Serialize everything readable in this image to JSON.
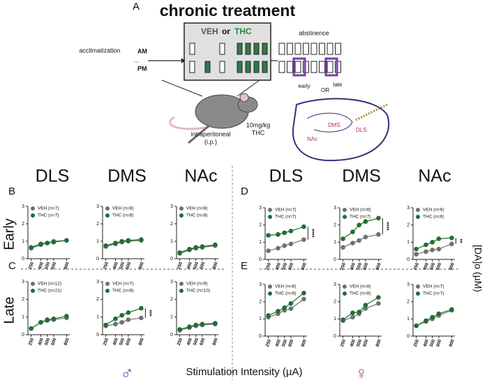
{
  "figure": {
    "panel_labels": [
      "A",
      "B",
      "C",
      "D",
      "E"
    ],
    "regions": [
      "DLS",
      "DMS",
      "NAc"
    ],
    "rows": [
      "Early",
      "Late"
    ],
    "y_label": "[DA]o (µM)",
    "x_label": "Stimulation Intensity (µA)",
    "sexes": [
      "♂",
      "♀"
    ]
  },
  "schematic": {
    "title": "chronic treatment",
    "veh": "VEH",
    "or": "or",
    "thc": "THC",
    "acclimatization": "acclimatization",
    "am": "AM",
    "pm": "PM",
    "ellipsis": "...",
    "abstinence": "abstinence",
    "early": "early",
    "or2": "OR",
    "late": "late",
    "brain_labels": [
      "DMS",
      "DLS",
      "NAc"
    ],
    "route": "intraperitoneal",
    "route_abbr": "(i.p.)",
    "dose": "10mg/kg",
    "drug": "THC"
  },
  "chart_data": [
    {
      "type": "line",
      "x": [
        250,
        400,
        500,
        600,
        800
      ],
      "xlim": [
        200,
        850
      ],
      "xticks": [
        250,
        400,
        500,
        600,
        800
      ],
      "ylim": [
        0,
        3
      ],
      "yticks": [
        0,
        1,
        2,
        3
      ],
      "series": [
        {
          "name": "VEH (n=7)",
          "color": "#707070",
          "values": [
            0.6,
            0.8,
            0.9,
            1.0,
            1.05
          ]
        },
        {
          "name": "THC (n=7)",
          "color": "#1f6e30",
          "values": [
            0.65,
            0.85,
            0.9,
            0.95,
            1.05
          ]
        }
      ]
    },
    {
      "type": "line",
      "x": [
        250,
        400,
        500,
        600,
        800
      ],
      "xlim": [
        200,
        850
      ],
      "xticks": [
        250,
        400,
        500,
        600,
        800
      ],
      "ylim": [
        0,
        3
      ],
      "yticks": [
        0,
        1,
        2,
        3
      ],
      "series": [
        {
          "name": "VEH (n=8)",
          "color": "#707070",
          "values": [
            0.7,
            0.85,
            0.95,
            1.0,
            1.05
          ]
        },
        {
          "name": "THC (n=8)",
          "color": "#1f6e30",
          "values": [
            0.75,
            0.9,
            1.0,
            1.05,
            1.1
          ]
        }
      ]
    },
    {
      "type": "line",
      "x": [
        250,
        400,
        500,
        600,
        800
      ],
      "xlim": [
        200,
        850
      ],
      "xticks": [
        250,
        400,
        500,
        600,
        800
      ],
      "ylim": [
        0,
        3
      ],
      "yticks": [
        0,
        1,
        2,
        3
      ],
      "series": [
        {
          "name": "VEH (n=8)",
          "color": "#707070",
          "values": [
            0.3,
            0.5,
            0.6,
            0.65,
            0.75
          ]
        },
        {
          "name": "THC (n=8)",
          "color": "#1f6e30",
          "values": [
            0.35,
            0.55,
            0.65,
            0.7,
            0.8
          ]
        }
      ]
    },
    {
      "type": "line",
      "x": [
        250,
        400,
        500,
        600,
        800
      ],
      "xlim": [
        200,
        850
      ],
      "xticks": [
        250,
        400,
        500,
        600,
        800
      ],
      "ylim": [
        0,
        3
      ],
      "yticks": [
        0,
        1,
        2,
        3
      ],
      "series": [
        {
          "name": "VEH (n=7)",
          "color": "#707070",
          "values": [
            0.5,
            0.65,
            0.8,
            0.9,
            1.15
          ]
        },
        {
          "name": "THC (n=7)",
          "color": "#1f6e30",
          "values": [
            1.4,
            1.45,
            1.55,
            1.65,
            1.9
          ]
        }
      ],
      "annotation": "****"
    },
    {
      "type": "line",
      "x": [
        250,
        400,
        500,
        600,
        800
      ],
      "xlim": [
        200,
        850
      ],
      "xticks": [
        250,
        400,
        500,
        600,
        800
      ],
      "ylim": [
        0,
        3
      ],
      "yticks": [
        0,
        1,
        2,
        3
      ],
      "series": [
        {
          "name": "VEH (n=8)",
          "color": "#707070",
          "values": [
            0.7,
            0.95,
            1.1,
            1.3,
            1.45
          ]
        },
        {
          "name": "THC (n=7)",
          "color": "#1f6e30",
          "values": [
            1.2,
            1.6,
            2.0,
            2.2,
            2.4
          ]
        }
      ],
      "annotation": "****"
    },
    {
      "type": "line",
      "x": [
        250,
        400,
        500,
        600,
        800
      ],
      "xlim": [
        200,
        850
      ],
      "xticks": [
        250,
        400,
        500,
        600,
        800
      ],
      "ylim": [
        0,
        3
      ],
      "yticks": [
        0,
        1,
        2,
        3
      ],
      "series": [
        {
          "name": "VEH (n=6)",
          "color": "#707070",
          "values": [
            0.3,
            0.45,
            0.55,
            0.6,
            0.9
          ]
        },
        {
          "name": "THC (n=6)",
          "color": "#1f6e30",
          "values": [
            0.6,
            0.85,
            1.0,
            1.2,
            1.25
          ]
        }
      ],
      "annotation": "**"
    },
    {
      "type": "line",
      "x": [
        250,
        400,
        500,
        600,
        800
      ],
      "xlim": [
        200,
        850
      ],
      "xticks": [
        250,
        400,
        500,
        600,
        800
      ],
      "ylim": [
        0,
        3
      ],
      "yticks": [
        0,
        1,
        2,
        3
      ],
      "series": [
        {
          "name": "VEH (n=12)",
          "color": "#707070",
          "values": [
            0.35,
            0.7,
            0.8,
            0.85,
            0.95
          ]
        },
        {
          "name": "THC (n=21)",
          "color": "#1f6e30",
          "values": [
            0.35,
            0.7,
            0.85,
            0.9,
            1.05
          ]
        }
      ]
    },
    {
      "type": "line",
      "x": [
        250,
        400,
        500,
        600,
        800
      ],
      "xlim": [
        200,
        850
      ],
      "xticks": [
        250,
        400,
        500,
        600,
        800
      ],
      "ylim": [
        0,
        3
      ],
      "yticks": [
        0,
        1,
        2,
        3
      ],
      "series": [
        {
          "name": "VEH (n=7)",
          "color": "#707070",
          "values": [
            0.5,
            0.6,
            0.7,
            0.85,
            0.95
          ]
        },
        {
          "name": "THC (n=8)",
          "color": "#1f6e30",
          "values": [
            0.55,
            0.9,
            1.1,
            1.25,
            1.5
          ]
        }
      ],
      "annotation": "***"
    },
    {
      "type": "line",
      "x": [
        250,
        400,
        500,
        600,
        800
      ],
      "xlim": [
        200,
        850
      ],
      "xticks": [
        250,
        400,
        500,
        600,
        800
      ],
      "ylim": [
        0,
        3
      ],
      "yticks": [
        0,
        1,
        2,
        3
      ],
      "series": [
        {
          "name": "VEH (n=9)",
          "color": "#707070",
          "values": [
            0.25,
            0.4,
            0.5,
            0.55,
            0.6
          ]
        },
        {
          "name": "THC (n=10)",
          "color": "#1f6e30",
          "values": [
            0.3,
            0.45,
            0.55,
            0.6,
            0.65
          ]
        }
      ]
    },
    {
      "type": "line",
      "x": [
        250,
        400,
        500,
        600,
        800
      ],
      "xlim": [
        200,
        850
      ],
      "xticks": [
        250,
        400,
        500,
        600,
        800
      ],
      "ylim": [
        0,
        3
      ],
      "yticks": [
        0,
        1,
        2,
        3
      ],
      "series": [
        {
          "name": "VEH (n=8)",
          "color": "#707070",
          "values": [
            1.1,
            1.3,
            1.5,
            1.6,
            2.15
          ]
        },
        {
          "name": "THC (n=8)",
          "color": "#1f6e30",
          "values": [
            1.2,
            1.45,
            1.65,
            1.9,
            2.5
          ]
        }
      ]
    },
    {
      "type": "line",
      "x": [
        250,
        400,
        500,
        600,
        800
      ],
      "xlim": [
        200,
        850
      ],
      "xticks": [
        250,
        400,
        500,
        600,
        800
      ],
      "ylim": [
        0,
        3
      ],
      "yticks": [
        0,
        1,
        2,
        3
      ],
      "series": [
        {
          "name": "VEH (n=8)",
          "color": "#707070",
          "values": [
            0.9,
            1.1,
            1.3,
            1.6,
            1.9
          ]
        },
        {
          "name": "THC (n=8)",
          "color": "#1f6e30",
          "values": [
            0.95,
            1.35,
            1.4,
            1.8,
            2.25
          ]
        }
      ]
    },
    {
      "type": "line",
      "x": [
        250,
        400,
        500,
        600,
        800
      ],
      "xlim": [
        200,
        850
      ],
      "xticks": [
        250,
        400,
        500,
        600,
        800
      ],
      "ylim": [
        0,
        3
      ],
      "yticks": [
        0,
        1,
        2,
        3
      ],
      "series": [
        {
          "name": "VEH (n=7)",
          "color": "#707070",
          "values": [
            0.6,
            0.85,
            1.0,
            1.2,
            1.5
          ]
        },
        {
          "name": "THC (n=7)",
          "color": "#1f6e30",
          "values": [
            0.6,
            0.9,
            1.1,
            1.3,
            1.55
          ]
        }
      ]
    }
  ]
}
